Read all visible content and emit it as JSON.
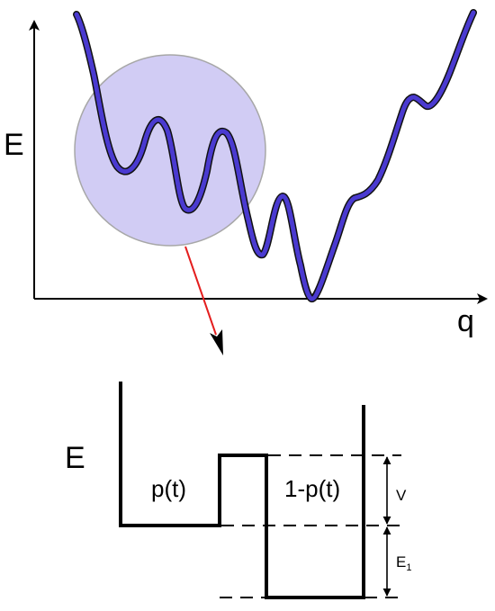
{
  "top_panel": {
    "y_axis_label": "E",
    "x_axis_label": "q"
  },
  "bottom_panel": {
    "y_axis_label": "E",
    "left_well_label": "p(t)",
    "right_well_label": "1-p(t)",
    "barrier_label": "V",
    "energy_gap_label": "E",
    "energy_gap_subscript": "1"
  },
  "colors": {
    "curve": "#4a3ad0",
    "curve_outline": "#111111",
    "highlight_circle_fill": "#c9c3f2",
    "highlight_circle_stroke": "#a7a7a7",
    "arrow": "#e41e1e",
    "axes": "#000000"
  }
}
